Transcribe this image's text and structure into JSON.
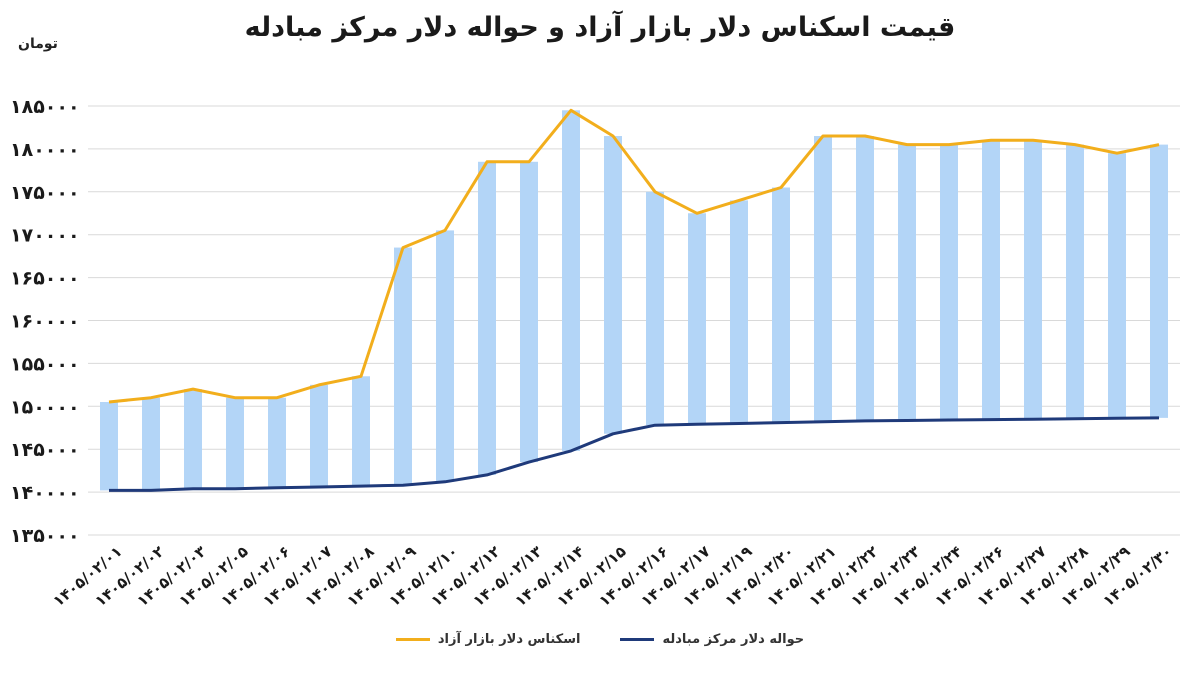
{
  "colors": {
    "bar": "#B3D5F7",
    "free_market_line": "#F2AE1C",
    "exchange_center_line": "#1F3A7A",
    "grid": "#d9d9d9",
    "text": "#1a1a1a"
  },
  "chart_data": {
    "type": "bar",
    "title": "قیمت اسکناس دلار بازار آزاد و حواله دلار مرکز مبادله",
    "unit": "تومان",
    "ylim": [
      135000,
      185000
    ],
    "yticks": [
      "۱۳۵۰۰۰",
      "۱۴۰۰۰۰",
      "۱۴۵۰۰۰",
      "۱۵۰۰۰۰",
      "۱۵۵۰۰۰",
      "۱۶۰۰۰۰",
      "۱۶۵۰۰۰",
      "۱۷۰۰۰۰",
      "۱۷۵۰۰۰",
      "۱۸۰۰۰۰",
      "۱۸۵۰۰۰"
    ],
    "ytick_values": [
      135000,
      140000,
      145000,
      150000,
      155000,
      160000,
      165000,
      170000,
      175000,
      180000,
      185000
    ],
    "grid": true,
    "legend_position": "bottom",
    "categories": [
      "۱۴۰۵/۰۲/۰۱",
      "۱۴۰۵/۰۲/۰۲",
      "۱۴۰۵/۰۲/۰۳",
      "۱۴۰۵/۰۲/۰۵",
      "۱۴۰۵/۰۲/۰۶",
      "۱۴۰۵/۰۲/۰۷",
      "۱۴۰۵/۰۲/۰۸",
      "۱۴۰۵/۰۲/۰۹",
      "۱۴۰۵/۰۲/۱۰",
      "۱۴۰۵/۰۲/۱۲",
      "۱۴۰۵/۰۲/۱۳",
      "۱۴۰۵/۰۲/۱۴",
      "۱۴۰۵/۰۲/۱۵",
      "۱۴۰۵/۰۲/۱۶",
      "۱۴۰۵/۰۲/۱۷",
      "۱۴۰۵/۰۲/۱۹",
      "۱۴۰۵/۰۲/۲۰",
      "۱۴۰۵/۰۲/۲۱",
      "۱۴۰۵/۰۲/۲۲",
      "۱۴۰۵/۰۲/۲۳",
      "۱۴۰۵/۰۲/۲۴",
      "۱۴۰۵/۰۲/۲۶",
      "۱۴۰۵/۰۲/۲۷",
      "۱۴۰۵/۰۲/۲۸",
      "۱۴۰۵/۰۲/۲۹",
      "۱۴۰۵/۰۲/۳۰"
    ],
    "series": [
      {
        "name": "اسکناس دلار بازار آزاد",
        "values": [
          150500,
          151000,
          152000,
          151000,
          151000,
          152500,
          153500,
          168500,
          170500,
          178500,
          178500,
          184500,
          181500,
          175000,
          172500,
          174000,
          175500,
          181500,
          181500,
          180500,
          180500,
          181000,
          181000,
          180500,
          179500,
          180500
        ]
      },
      {
        "name": "حواله دلار مرکز مبادله",
        "values": [
          140200,
          140200,
          140400,
          140400,
          140500,
          140600,
          140700,
          140800,
          141200,
          142000,
          143500,
          144800,
          146800,
          147800,
          147900,
          148000,
          148100,
          148200,
          148300,
          148350,
          148400,
          148450,
          148500,
          148550,
          148600,
          148650
        ]
      }
    ]
  },
  "legend": {
    "exchange_center_label": "حواله دلار مرکز مبادله",
    "free_market_label": "اسکناس دلار بازار آزاد"
  }
}
